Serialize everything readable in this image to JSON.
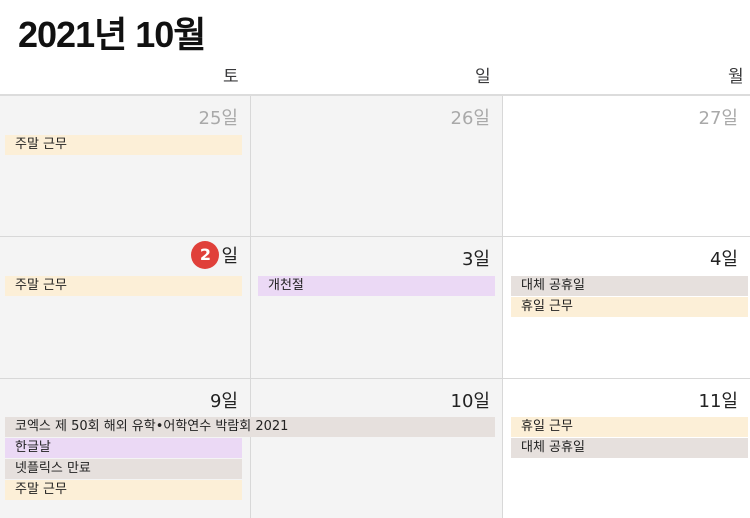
{
  "header": {
    "title": "2021년 10월"
  },
  "weekdays": [
    "토",
    "일",
    "월"
  ],
  "weeks": [
    {
      "days": [
        {
          "num": "25일",
          "events": [
            "주말 근무"
          ]
        },
        {
          "num": "26일",
          "events": []
        },
        {
          "num": "27일",
          "events": []
        }
      ]
    },
    {
      "days": [
        {
          "num": "2",
          "suffix": "일",
          "events": [
            "주말 근무"
          ]
        },
        {
          "num": "3일",
          "events": [
            "개천절"
          ]
        },
        {
          "num": "4일",
          "events": [
            "대체 공휴일",
            "휴일 근무"
          ]
        }
      ]
    },
    {
      "days": [
        {
          "num": "9일",
          "events": [
            "코엑스 제 50회 해외 유학•어학연수 박람회 2021",
            "한글날",
            "넷플릭스 만료",
            "주말 근무"
          ]
        },
        {
          "num": "10일",
          "events": []
        },
        {
          "num": "11일",
          "events": [
            "휴일 근무",
            "대체 공휴일"
          ]
        }
      ]
    }
  ],
  "colors": {
    "today_badge": "#e0403a",
    "event_work": "#fcefd7",
    "event_holiday": "#ebd9f5",
    "event_other": "#e6e0dd"
  }
}
